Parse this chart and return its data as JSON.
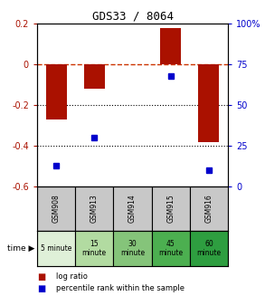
{
  "title": "GDS33 / 8064",
  "samples": [
    "GSM908",
    "GSM913",
    "GSM914",
    "GSM915",
    "GSM916"
  ],
  "time_labels": [
    "5 minute",
    "15\nminute",
    "30\nminute",
    "45\nminute",
    "60\nminute"
  ],
  "time_colors": [
    "#dff0d8",
    "#b2dba1",
    "#85c47a",
    "#4caf50",
    "#2e9e40"
  ],
  "log_ratio": [
    -0.27,
    -0.12,
    0.0,
    0.18,
    -0.38
  ],
  "percentile_rank": [
    13,
    30,
    null,
    68,
    10
  ],
  "ylim_left": [
    -0.6,
    0.2
  ],
  "ylim_right": [
    0,
    100
  ],
  "bar_color": "#aa1100",
  "dot_color": "#0000cc",
  "zero_line_color": "#cc3300",
  "grid_color": "#000000",
  "bg_color": "#ffffff",
  "left_yticks": [
    -0.6,
    -0.4,
    -0.2,
    0.0,
    0.2
  ],
  "right_yticks": [
    0,
    25,
    50,
    75,
    100
  ],
  "bar_width": 0.55,
  "gsm_color": "#c8c8c8"
}
